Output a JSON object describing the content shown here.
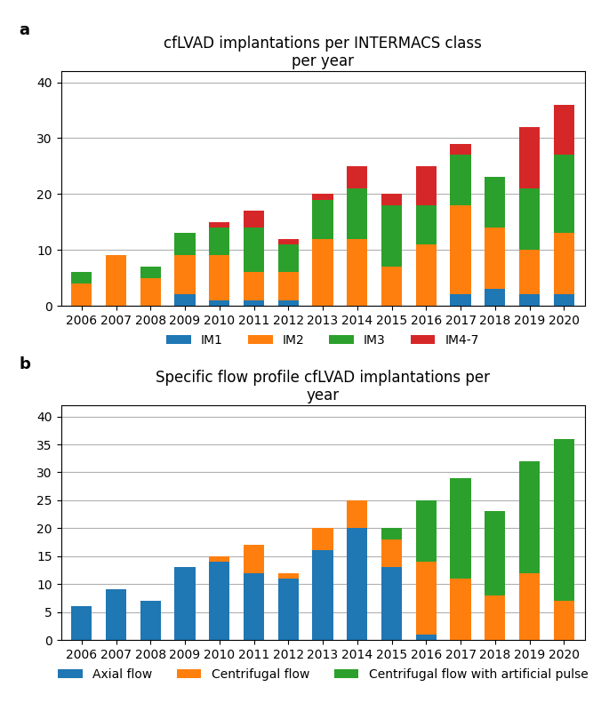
{
  "chart_data": [
    {
      "type": "bar",
      "stacked": true,
      "grid": true,
      "legend": "lower center",
      "title": "cfLVAD implantations per INTERMACS class\nper year",
      "annotations": [
        "a"
      ],
      "categories": [
        "2006",
        "2007",
        "2008",
        "2009",
        "2010",
        "2011",
        "2012",
        "2013",
        "2014",
        "2015",
        "2016",
        "2017",
        "2018",
        "2019",
        "2020"
      ],
      "series": [
        {
          "name": "IM1",
          "values": [
            0,
            0,
            0,
            2,
            1,
            1,
            1,
            0,
            0,
            0,
            0,
            2,
            3,
            2,
            2
          ]
        },
        {
          "name": "IM2",
          "values": [
            4,
            9,
            5,
            7,
            8,
            5,
            5,
            12,
            12,
            7,
            11,
            16,
            11,
            8,
            11
          ]
        },
        {
          "name": "IM3",
          "values": [
            2,
            0,
            2,
            4,
            5,
            8,
            5,
            7,
            9,
            11,
            7,
            9,
            9,
            11,
            14
          ]
        },
        {
          "name": "IM4-7",
          "values": [
            0,
            0,
            0,
            0,
            1,
            3,
            1,
            1,
            4,
            2,
            7,
            2,
            0,
            11,
            9
          ]
        }
      ],
      "ylim": [
        0,
        42
      ],
      "yticks": [
        0,
        10,
        20,
        30,
        40
      ]
    },
    {
      "type": "bar",
      "stacked": true,
      "grid": true,
      "legend": "lower center",
      "title": "Specific flow profile cfLVAD implantations per\nyear",
      "annotations": [
        "b"
      ],
      "categories": [
        "2006",
        "2007",
        "2008",
        "2009",
        "2010",
        "2011",
        "2012",
        "2013",
        "2014",
        "2015",
        "2016",
        "2017",
        "2018",
        "2019",
        "2020"
      ],
      "series": [
        {
          "name": "Axial flow",
          "values": [
            6,
            9,
            7,
            13,
            14,
            12,
            11,
            16,
            20,
            13,
            1,
            0,
            0,
            0,
            0
          ]
        },
        {
          "name": "Centrifugal flow",
          "values": [
            0,
            0,
            0,
            0,
            1,
            5,
            1,
            4,
            5,
            5,
            13,
            11,
            8,
            12,
            7
          ]
        },
        {
          "name": "Centrifugal flow with artificial pulse",
          "values": [
            0,
            0,
            0,
            0,
            0,
            0,
            0,
            0,
            0,
            2,
            11,
            18,
            15,
            20,
            29
          ]
        }
      ],
      "ylim": [
        0,
        42
      ],
      "yticks": [
        0,
        5,
        10,
        15,
        20,
        25,
        30,
        35,
        40
      ]
    }
  ]
}
